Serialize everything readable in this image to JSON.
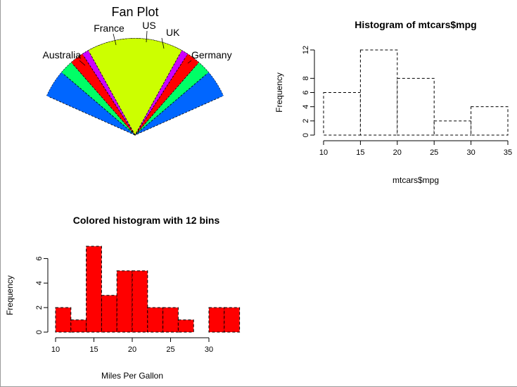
{
  "chart_data": [
    {
      "type": "fan",
      "title": "Fan Plot",
      "slices": [
        {
          "label": "US",
          "value": 10,
          "color": "#ff0000"
        },
        {
          "label": "UK",
          "value": 7,
          "color": "#ccff00"
        },
        {
          "label": "Australia",
          "value": 12,
          "color": "#00ff66"
        },
        {
          "label": "Germany",
          "value": 16,
          "color": "#0066ff"
        },
        {
          "label": "France",
          "value": 8,
          "color": "#cc00ff"
        }
      ]
    },
    {
      "type": "bar",
      "title": "Histogram of mtcars$mpg",
      "xlabel": "mtcars$mpg",
      "ylabel": "Frequency",
      "bins": [
        [
          10,
          15
        ],
        [
          15,
          20
        ],
        [
          20,
          25
        ],
        [
          25,
          30
        ],
        [
          30,
          35
        ]
      ],
      "values": [
        6,
        12,
        8,
        2,
        4
      ],
      "xticks": [
        10,
        15,
        20,
        25,
        30,
        35
      ],
      "yticks": [
        0,
        2,
        4,
        6,
        8,
        12
      ],
      "ylim": [
        0,
        12
      ],
      "fill": "#ffffff",
      "border": "dashed"
    },
    {
      "type": "bar",
      "title": "Colored histogram with 12 bins",
      "xlabel": "Miles Per Gallon",
      "ylabel": "Frequency",
      "bins": [
        [
          10,
          12
        ],
        [
          12,
          14
        ],
        [
          14,
          16
        ],
        [
          16,
          18
        ],
        [
          18,
          20
        ],
        [
          20,
          22
        ],
        [
          22,
          24
        ],
        [
          24,
          26
        ],
        [
          26,
          28
        ],
        [
          28,
          30
        ],
        [
          30,
          32
        ],
        [
          32,
          34
        ]
      ],
      "values": [
        2,
        1,
        7,
        3,
        5,
        5,
        2,
        2,
        1,
        0,
        2,
        2
      ],
      "xticks": [
        10,
        15,
        20,
        25,
        30
      ],
      "yticks": [
        0,
        2,
        4,
        6
      ],
      "ylim": [
        0,
        7
      ],
      "fill": "#ff0000",
      "border": "dashed"
    }
  ]
}
